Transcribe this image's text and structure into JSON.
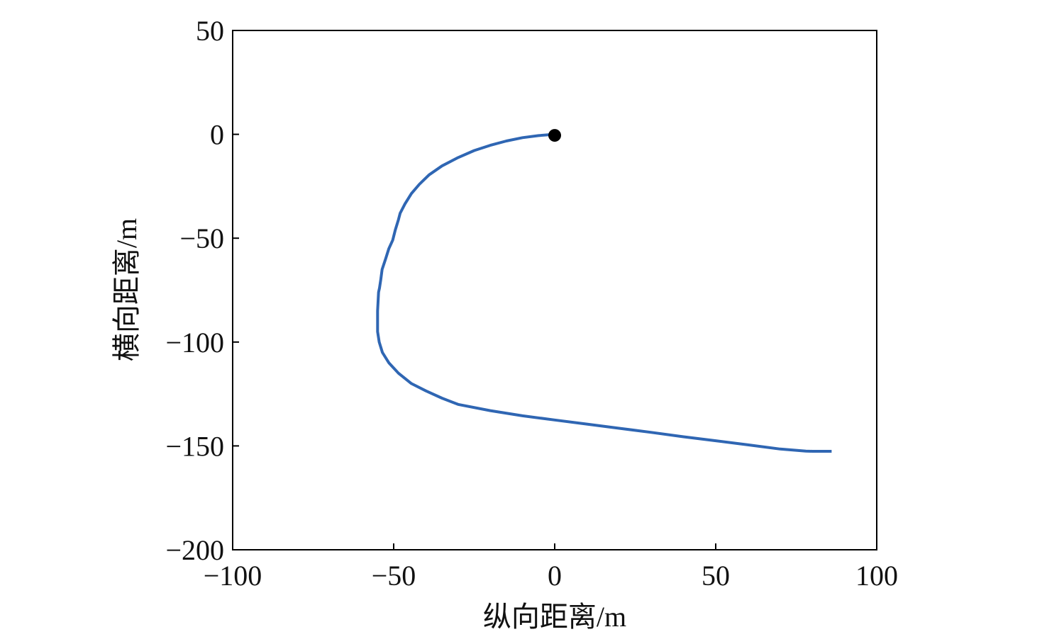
{
  "chart_data": {
    "type": "line",
    "title": "",
    "xlabel": "纵向距离/m",
    "ylabel": "横向距离/m",
    "xlim": [
      -100,
      100
    ],
    "ylim": [
      -200,
      50
    ],
    "xticks": [
      -100,
      -50,
      0,
      50,
      100
    ],
    "yticks": [
      50,
      0,
      -50,
      -100,
      -150,
      -200
    ],
    "xtick_labels": [
      "−100",
      "−50",
      "0",
      "50",
      "100"
    ],
    "ytick_labels": [
      "50",
      "0",
      "−50",
      "−100",
      "−150",
      "−200"
    ],
    "grid": false,
    "legend": "none",
    "series": [
      {
        "color": "#2f66b3",
        "x": [
          0,
          -2,
          -5,
          -10,
          -15,
          -20,
          -25,
          -30,
          -35,
          -39,
          -42,
          -44.5,
          -46.5,
          -48,
          -48.5,
          -49.5,
          -50.3,
          -51.5,
          -52.5,
          -53.6,
          -54,
          -54.4,
          -54.7,
          -55,
          -55,
          -54.5,
          -53.5,
          -51.5,
          -48.5,
          -44.5,
          -40,
          -35,
          -30,
          -20,
          -10,
          0,
          10,
          20,
          30,
          40,
          50,
          60,
          70,
          78,
          80,
          86
        ],
        "y": [
          0,
          -0.2,
          -0.6,
          -1.6,
          -3.2,
          -5.3,
          -7.8,
          -11.2,
          -15.2,
          -19.5,
          -24,
          -28.5,
          -33.5,
          -38,
          -41,
          -46,
          -51,
          -55,
          -60,
          -65,
          -70,
          -74,
          -76,
          -85,
          -95,
          -100,
          -105,
          -110,
          -115,
          -120,
          -123.5,
          -127,
          -130,
          -133,
          -135.5,
          -137.5,
          -139.5,
          -141.5,
          -143.5,
          -145.6,
          -147.5,
          -149.5,
          -151.5,
          -152.5,
          -152.6,
          -152.6
        ]
      }
    ],
    "marker": {
      "x": 0,
      "y": -0.5,
      "color": "#000000"
    }
  }
}
